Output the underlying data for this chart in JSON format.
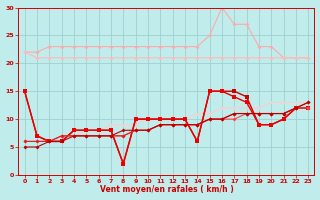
{
  "background_color": "#c0ecec",
  "grid_color": "#a0d0d0",
  "xlabel": "Vent moyen/en rafales ( km/h )",
  "xlabel_color": "#cc0000",
  "tick_color": "#cc0000",
  "xlim": [
    -0.5,
    23.5
  ],
  "ylim": [
    0,
    30
  ],
  "yticks": [
    0,
    5,
    10,
    15,
    20,
    25,
    30
  ],
  "xticks": [
    0,
    1,
    2,
    3,
    4,
    5,
    6,
    7,
    8,
    9,
    10,
    11,
    12,
    13,
    14,
    15,
    16,
    17,
    18,
    19,
    20,
    21,
    22,
    23
  ],
  "series": [
    {
      "x": [
        0,
        1,
        2,
        3,
        4,
        5,
        6,
        7,
        8,
        9,
        10,
        11,
        12,
        13,
        14,
        15,
        16,
        17,
        18,
        19,
        20,
        21,
        22,
        23
      ],
      "y": [
        22,
        22,
        23,
        23,
        23,
        23,
        23,
        23,
        23,
        23,
        23,
        23,
        23,
        23,
        23,
        25,
        30,
        27,
        27,
        23,
        23,
        21,
        21,
        21
      ],
      "color": "#ffaaaa",
      "linewidth": 0.8,
      "markersize": 2.0,
      "marker": "D"
    },
    {
      "x": [
        0,
        1,
        2,
        3,
        4,
        5,
        6,
        7,
        8,
        9,
        10,
        11,
        12,
        13,
        14,
        15,
        16,
        17,
        18,
        19,
        20,
        21,
        22,
        23
      ],
      "y": [
        22,
        21,
        21,
        21,
        21,
        21,
        21,
        21,
        21,
        21,
        21,
        21,
        21,
        21,
        21,
        21,
        21,
        21,
        21,
        21,
        21,
        21,
        21,
        21
      ],
      "color": "#ffbbbb",
      "linewidth": 0.8,
      "markersize": 2.0,
      "marker": "D"
    },
    {
      "x": [
        0,
        1,
        2,
        3,
        4,
        5,
        6,
        7,
        8,
        9,
        10,
        11,
        12,
        13,
        14,
        15,
        16,
        17,
        18,
        19,
        20,
        21,
        22,
        23
      ],
      "y": [
        6,
        6,
        6,
        7,
        7,
        8,
        8,
        9,
        9,
        9,
        10,
        10,
        10,
        10,
        11,
        11,
        12,
        12,
        12,
        12,
        13,
        13,
        13,
        13
      ],
      "color": "#ffcccc",
      "linewidth": 0.8,
      "markersize": 1.5,
      "marker": "D"
    },
    {
      "x": [
        0,
        1,
        2,
        3,
        4,
        5,
        6,
        7,
        8,
        9,
        10,
        11,
        12,
        13,
        14,
        15,
        16,
        17,
        18,
        19,
        20,
        21,
        22,
        23
      ],
      "y": [
        15,
        7,
        6,
        6,
        8,
        8,
        8,
        8,
        2,
        10,
        10,
        10,
        10,
        10,
        6,
        15,
        15,
        15,
        14,
        9,
        9,
        10,
        12,
        12
      ],
      "color": "#cc0000",
      "linewidth": 1.0,
      "markersize": 2.5,
      "marker": "s"
    },
    {
      "x": [
        0,
        1,
        2,
        3,
        4,
        5,
        6,
        7,
        8,
        9,
        10,
        11,
        12,
        13,
        14,
        15,
        16,
        17,
        18,
        19,
        20,
        21,
        22,
        23
      ],
      "y": [
        15,
        7,
        6,
        6,
        8,
        8,
        8,
        8,
        2,
        10,
        10,
        10,
        10,
        10,
        6,
        15,
        15,
        14,
        13,
        9,
        9,
        10,
        12,
        12
      ],
      "color": "#ee0000",
      "linewidth": 1.0,
      "markersize": 2.5,
      "marker": "s"
    },
    {
      "x": [
        0,
        1,
        2,
        3,
        4,
        5,
        6,
        7,
        8,
        9,
        10,
        11,
        12,
        13,
        14,
        15,
        16,
        17,
        18,
        19,
        20,
        21,
        22,
        23
      ],
      "y": [
        6,
        6,
        6,
        7,
        7,
        7,
        7,
        7,
        7,
        8,
        8,
        9,
        9,
        9,
        9,
        10,
        10,
        10,
        11,
        11,
        11,
        11,
        12,
        12
      ],
      "color": "#ff4444",
      "linewidth": 0.8,
      "markersize": 2.0,
      "marker": "D"
    },
    {
      "x": [
        0,
        1,
        2,
        3,
        4,
        5,
        6,
        7,
        8,
        9,
        10,
        11,
        12,
        13,
        14,
        15,
        16,
        17,
        18,
        19,
        20,
        21,
        22,
        23
      ],
      "y": [
        6,
        6,
        6,
        7,
        7,
        7,
        7,
        7,
        7,
        8,
        8,
        9,
        9,
        9,
        9,
        10,
        10,
        11,
        11,
        11,
        11,
        11,
        12,
        13
      ],
      "color": "#dd2222",
      "linewidth": 0.8,
      "markersize": 2.0,
      "marker": "D"
    },
    {
      "x": [
        0,
        1,
        2,
        3,
        4,
        5,
        6,
        7,
        8,
        9,
        10,
        11,
        12,
        13,
        14,
        15,
        16,
        17,
        18,
        19,
        20,
        21,
        22,
        23
      ],
      "y": [
        5,
        5,
        6,
        6,
        7,
        7,
        7,
        7,
        8,
        8,
        8,
        9,
        9,
        9,
        9,
        10,
        10,
        11,
        11,
        11,
        11,
        11,
        12,
        13
      ],
      "color": "#bb0000",
      "linewidth": 0.8,
      "markersize": 2.0,
      "marker": "D"
    }
  ]
}
